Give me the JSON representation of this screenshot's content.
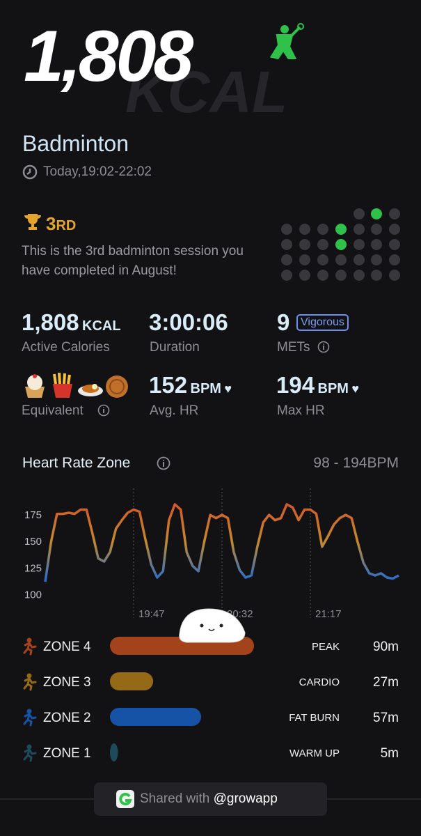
{
  "header": {
    "calories": "1,808",
    "unit": "KCAL",
    "activity": "Badminton",
    "time": "Today,19:02-22:02"
  },
  "ranking": {
    "rank": "3",
    "suffix": "RD",
    "description": "This is the 3rd badminton session you have completed in August!"
  },
  "stats": [
    {
      "value": "1,808",
      "unit": "KCAL",
      "label": "Active Calories"
    },
    {
      "value": "3:00:06",
      "label": "Duration"
    },
    {
      "value": "9",
      "badge": "Vigorous",
      "label": "METs"
    },
    {
      "label": "Equivalent"
    },
    {
      "value": "152",
      "unit": "BPM",
      "label": "Avg. HR"
    },
    {
      "value": "194",
      "unit": "BPM",
      "label": "Max HR"
    }
  ],
  "heart_rate_zone": {
    "title": "Heart Rate Zone",
    "range": "98 - 194BPM"
  },
  "chart_data": {
    "type": "line",
    "x": [
      "19:02",
      "19:05",
      "19:08",
      "19:11",
      "19:14",
      "19:17",
      "19:20",
      "19:23",
      "19:26",
      "19:29",
      "19:32",
      "19:35",
      "19:38",
      "19:41",
      "19:44",
      "19:47",
      "19:50",
      "19:53",
      "19:56",
      "19:59",
      "20:02",
      "20:05",
      "20:08",
      "20:11",
      "20:14",
      "20:17",
      "20:20",
      "20:23",
      "20:26",
      "20:29",
      "20:32",
      "20:35",
      "20:38",
      "20:41",
      "20:44",
      "20:47",
      "20:50",
      "20:53",
      "20:56",
      "20:59",
      "21:02",
      "21:05",
      "21:08",
      "21:11",
      "21:14",
      "21:17",
      "21:20",
      "21:23",
      "21:26",
      "21:29",
      "21:32",
      "21:35",
      "21:38",
      "21:41",
      "21:44",
      "21:47",
      "21:50",
      "21:53",
      "21:56",
      "21:59",
      "22:02"
    ],
    "values": [
      112,
      150,
      176,
      176,
      177,
      176,
      180,
      180,
      158,
      134,
      131,
      140,
      162,
      170,
      177,
      180,
      178,
      152,
      128,
      116,
      122,
      170,
      185,
      180,
      140,
      127,
      122,
      150,
      175,
      172,
      175,
      172,
      140,
      123,
      116,
      118,
      145,
      168,
      175,
      170,
      172,
      185,
      182,
      170,
      180,
      180,
      176,
      145,
      155,
      166,
      172,
      175,
      172,
      150,
      130,
      120,
      118,
      120,
      116,
      115,
      118
    ],
    "colors": [
      "#d4582a",
      "#c48a2c",
      "#2f6fc4"
    ],
    "xlim": [
      "19:02",
      "22:02"
    ],
    "xticks": [
      "19:47",
      "20:32",
      "21:17"
    ],
    "ylim": [
      95,
      200
    ],
    "yticks": [
      100,
      125,
      150,
      175
    ]
  },
  "zones": [
    {
      "name": "ZONE 4",
      "label": "PEAK",
      "minutes": 90,
      "minutes_label": "90m",
      "color": "#a3431b"
    },
    {
      "name": "ZONE 3",
      "label": "CARDIO",
      "minutes": 27,
      "minutes_label": "27m",
      "color": "#946a16"
    },
    {
      "name": "ZONE 2",
      "label": "FAT BURN",
      "minutes": 57,
      "minutes_label": "57m",
      "color": "#1652a6"
    },
    {
      "name": "ZONE 1",
      "label": "WARM UP",
      "minutes": 5,
      "minutes_label": "5m",
      "color": "#1d4b5c"
    }
  ],
  "footer": {
    "text": "Shared with",
    "handle": "@growapp"
  }
}
